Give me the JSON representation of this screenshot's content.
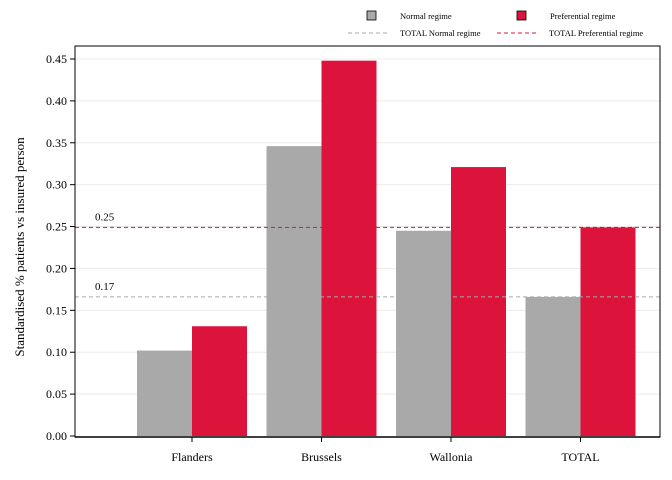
{
  "chart_data": {
    "type": "bar",
    "categories": [
      "Flanders",
      "Brussels",
      "Wallonia",
      "TOTAL"
    ],
    "series": [
      {
        "name": "Normal regime",
        "values": [
          0.102,
          0.346,
          0.245,
          0.166
        ],
        "color": "#a9a9a9"
      },
      {
        "name": "Preferential regime",
        "values": [
          0.131,
          0.448,
          0.321,
          0.249
        ],
        "color": "#dc143c"
      }
    ],
    "reference_lines": [
      {
        "name": "TOTAL Normal regime",
        "value": 0.166,
        "label": "0.17",
        "color": "#a9a9a9",
        "style": "dashed"
      },
      {
        "name": "TOTAL Preferential regime",
        "value": 0.249,
        "label": "0.25",
        "color": "#dc143c",
        "style": "dashed"
      }
    ],
    "ylabel": "Standardised % patients vs insured person",
    "xlabel": "",
    "ylim": [
      0,
      0.45
    ],
    "yticks": [
      "0.00",
      "0.05",
      "0.10",
      "0.15",
      "0.20",
      "0.25",
      "0.30",
      "0.35",
      "0.40",
      "0.45"
    ],
    "grid": true,
    "legend_position": "top-right"
  }
}
